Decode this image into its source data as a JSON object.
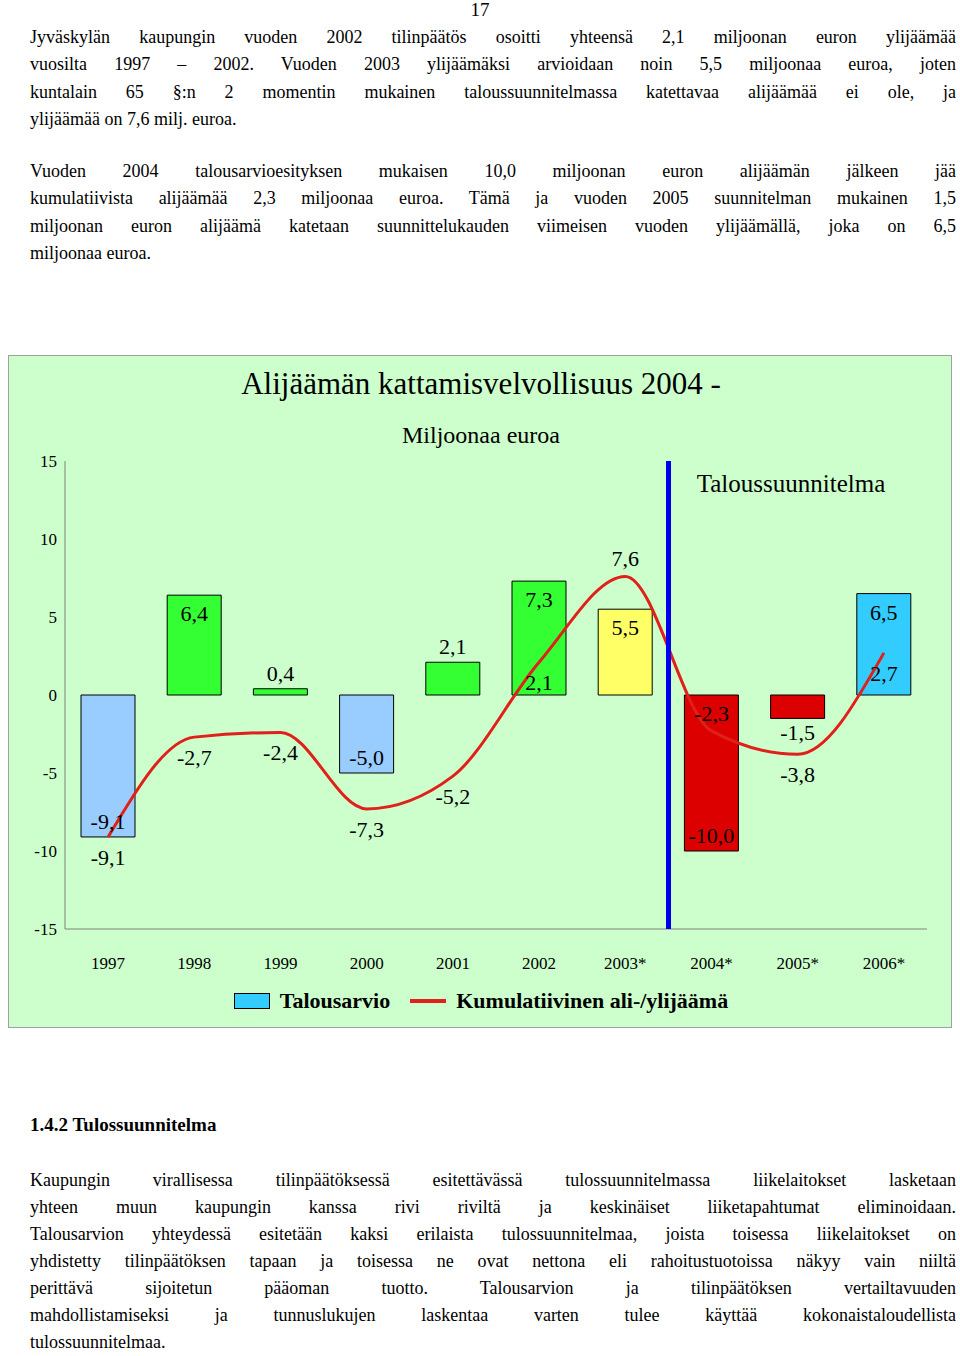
{
  "document": {
    "page_number": "17",
    "paragraphs": [
      [
        "Jyväskylän kaupungin vuoden 2002 tilinpäätös osoitti yhteensä 2,1 miljoonan euron ylijäämää",
        "vuosilta 1997 – 2002. Vuoden 2003 ylijäämäksi arvioidaan noin 5,5 miljoonaa euroa, joten",
        "kuntalain 65 §:n 2 momentin mukainen taloussuunnitelmassa katettavaa alijäämää ei ole, ja",
        "ylijäämää on 7,6 milj. euroa."
      ],
      [
        "Vuoden 2004 talousarvioesityksen mukaisen 10,0 miljoonan euron alijäämän jälkeen jää",
        "kumulatiivista alijäämää 2,3 miljoonaa euroa. Tämä ja vuoden 2005 suunnitelman mukainen 1,5",
        "miljoonan euron alijäämä katetaan suunnittelukauden viimeisen vuoden ylijäämällä, joka on 6,5",
        "miljoonaa euroa."
      ]
    ],
    "section_heading": "1.4.2 Tulossuunnitelma",
    "section_paragraph": [
      "Kaupungin virallisessa tilinpäätöksessä esitettävässä tulossuunnitelmassa liikelaitokset lasketaan",
      "yhteen muun kaupungin kanssa rivi riviltä ja keskinäiset liiketapahtumat eliminoidaan.",
      "Talousarvion yhteydessä esitetään kaksi erilaista tulossuunnitelmaa, joista toisessa liikelaitokset on",
      "yhdistetty tilinpäätöksen tapaan ja toisessa ne ovat nettona eli rahoitustuotoissa näkyy vain niiltä",
      "perittävä sijoitetun pääoman tuotto. Talousarvion ja tilinpäätöksen vertailtavuuden",
      "mahdollistamiseksi ja tunnuslukujen laskentaa varten tulee käyttää kokonaistaloudellista",
      "tulossuunnitelmaa."
    ]
  },
  "chart_data": {
    "type": "bar",
    "title": "Alijäämän kattamisvelvollisuus 2004 -",
    "subtitle": "Miljoonaa euroa",
    "annotation": "Taloussuunnitelma",
    "categories": [
      "1997",
      "1998",
      "1999",
      "2000",
      "2001",
      "2002",
      "2003*",
      "2004*",
      "2005*",
      "2006*"
    ],
    "series": [
      {
        "name": "Talousarvio",
        "type": "bar",
        "color": "#33ccff",
        "colors": [
          "#99ccff",
          "#33ff33",
          "#33ff33",
          "#99ccff",
          "#33ff33",
          "#33ff33",
          "#ffff66",
          "#dd0000",
          "#dd0000",
          "#33ccff"
        ],
        "values": [
          -9.1,
          6.4,
          0.4,
          -5.0,
          2.1,
          7.3,
          5.5,
          -10.0,
          -1.5,
          6.5
        ],
        "value_labels": [
          "-9,1",
          "6,4",
          "0,4",
          "-5,0",
          "2,1",
          "7,3",
          "5,5",
          "-10,0",
          "-1,5",
          "6,5"
        ]
      },
      {
        "name": "Kumulatiivinen ali-/ylijäämä",
        "type": "line",
        "color": "#e0201b",
        "marker": "none",
        "values": [
          -9.1,
          -2.7,
          -2.4,
          -7.3,
          -5.2,
          2.1,
          7.6,
          -2.3,
          -3.8,
          2.7
        ],
        "value_labels": [
          "-9,1",
          "-2,7",
          "-2,4",
          "-7,3",
          "-5,2",
          "2,1",
          "7,6",
          "-2,3",
          "-3,8",
          "2,7"
        ]
      }
    ],
    "ylim": [
      -15,
      15
    ],
    "yticks": [
      -15,
      -10,
      -5,
      0,
      5,
      10,
      15
    ],
    "grid": false,
    "legend": "bottom",
    "data_labels": true
  }
}
